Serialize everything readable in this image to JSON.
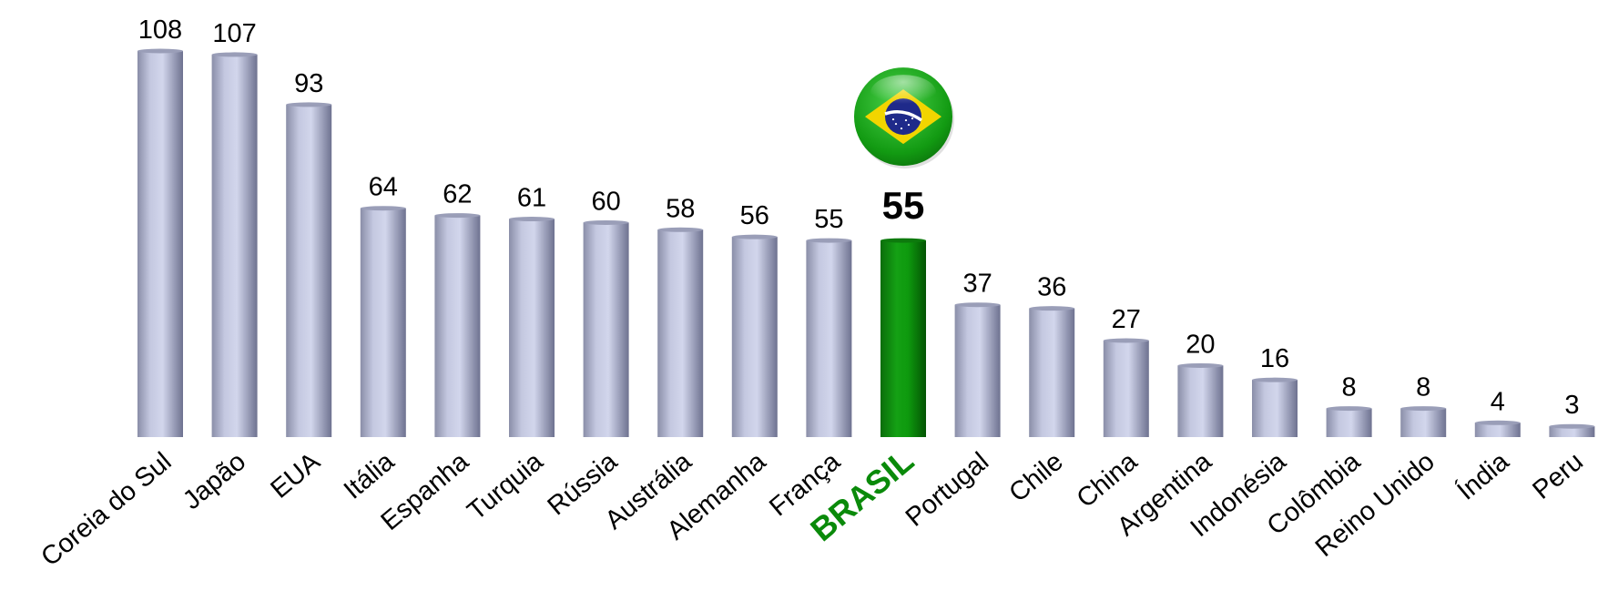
{
  "chart_data": {
    "type": "bar",
    "title": "",
    "xlabel": "",
    "ylabel": "",
    "ylim": [
      0,
      108
    ],
    "grid": false,
    "legend": "none",
    "categories": [
      "Coreia do Sul",
      "Japão",
      "EUA",
      "Itália",
      "Espanha",
      "Turquia",
      "Rússia",
      "Austrália",
      "Alemanha",
      "França",
      "BRASIL",
      "Portugal",
      "Chile",
      "China",
      "Argentina",
      "Indonésia",
      "Colômbia",
      "Reino Unido",
      "Índia",
      "Peru"
    ],
    "values": [
      108,
      107,
      93,
      64,
      62,
      61,
      60,
      58,
      56,
      55,
      55,
      37,
      36,
      27,
      20,
      16,
      8,
      8,
      4,
      3
    ],
    "highlight": "BRASIL",
    "colors": {
      "bar": "#b8bcd8",
      "bar_dark": "#7c8098",
      "highlight": "#0a8a0a",
      "highlight_dark": "#044f04",
      "highlight_label": "#0a8a0a"
    },
    "highlight_icon": "brazil-flag-icon"
  }
}
